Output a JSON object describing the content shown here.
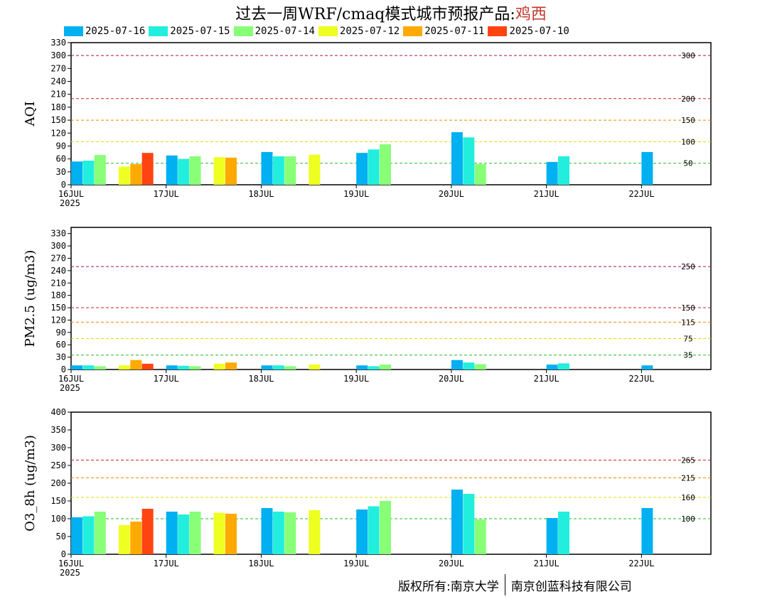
{
  "header": {
    "title_prefix": "过去一周WRF/cmaq模式城市预报产品:",
    "location": "鸡西"
  },
  "footer": {
    "left": "版权所有:南京大学",
    "right": "南京创蓝科技有限公司"
  },
  "colors": {
    "threshold_palette": {
      "good": "#22bb22",
      "moderate": "#dddd00",
      "sensitive": "#ee8800",
      "unhealthy": "#cc2222",
      "very_unhealthy": "#aa1155"
    }
  },
  "chart_data": [
    {
      "type": "bar",
      "ylabel": "AQI",
      "ylim": [
        0,
        330
      ],
      "yticks": [
        0,
        30,
        60,
        90,
        120,
        150,
        180,
        210,
        240,
        270,
        300,
        330
      ],
      "xlim": [
        16.0,
        22.73
      ],
      "xticks": [
        {
          "day": 16,
          "label": "16JUL",
          "sublabel": "2025"
        },
        {
          "day": 17,
          "label": "17JUL"
        },
        {
          "day": 18,
          "label": "18JUL"
        },
        {
          "day": 19,
          "label": "19JUL"
        },
        {
          "day": 20,
          "label": "20JUL"
        },
        {
          "day": 21,
          "label": "21JUL"
        },
        {
          "day": 22,
          "label": "22JUL"
        }
      ],
      "thresholds": [
        {
          "value": 50,
          "label": "50",
          "level": "good"
        },
        {
          "value": 100,
          "label": "100",
          "level": "moderate"
        },
        {
          "value": 150,
          "label": "150",
          "level": "sensitive"
        },
        {
          "value": 200,
          "label": "200",
          "level": "unhealthy"
        },
        {
          "value": 300,
          "label": "300",
          "level": "very_unhealthy"
        }
      ],
      "series": [
        {
          "name": "2025-07-16",
          "color": "#00b0f0",
          "points": [
            [
              16.0,
              54
            ],
            [
              17.0,
              68
            ],
            [
              18.0,
              76
            ],
            [
              19.0,
              74
            ],
            [
              20.0,
              122
            ],
            [
              21.0,
              53
            ],
            [
              22.0,
              76
            ]
          ]
        },
        {
          "name": "2025-07-15",
          "color": "#22eedd",
          "points": [
            [
              16.0,
              56
            ],
            [
              17.0,
              60
            ],
            [
              18.0,
              66
            ],
            [
              19.0,
              82
            ],
            [
              20.0,
              110
            ],
            [
              21.0,
              66
            ]
          ]
        },
        {
          "name": "2025-07-14",
          "color": "#88ff77",
          "points": [
            [
              16.0,
              69
            ],
            [
              17.0,
              66
            ],
            [
              18.0,
              66
            ],
            [
              19.0,
              94
            ],
            [
              20.0,
              48
            ]
          ]
        },
        {
          "name": "2025-07-12",
          "color": "#eeff22",
          "points": [
            [
              16.5,
              42
            ],
            [
              17.5,
              64
            ],
            [
              18.5,
              70
            ]
          ]
        },
        {
          "name": "2025-07-11",
          "color": "#ffaa00",
          "points": [
            [
              16.5,
              48
            ],
            [
              17.5,
              63
            ]
          ]
        },
        {
          "name": "2025-07-10",
          "color": "#ff4411",
          "points": [
            [
              16.5,
              74
            ]
          ]
        }
      ]
    },
    {
      "type": "bar",
      "ylabel": "PM2.5 (ug/m3)",
      "ylim": [
        0,
        345
      ],
      "yticks": [
        0,
        30,
        60,
        90,
        120,
        150,
        180,
        210,
        240,
        270,
        300,
        330
      ],
      "xlim": [
        16.0,
        22.73
      ],
      "xticks": [
        {
          "day": 16,
          "label": "16JUL",
          "sublabel": "2025"
        },
        {
          "day": 17,
          "label": "17JUL"
        },
        {
          "day": 18,
          "label": "18JUL"
        },
        {
          "day": 19,
          "label": "19JUL"
        },
        {
          "day": 20,
          "label": "20JUL"
        },
        {
          "day": 21,
          "label": "21JUL"
        },
        {
          "day": 22,
          "label": "22JUL"
        }
      ],
      "thresholds": [
        {
          "value": 35,
          "label": "35",
          "level": "good"
        },
        {
          "value": 75,
          "label": "75",
          "level": "moderate"
        },
        {
          "value": 115,
          "label": "115",
          "level": "sensitive"
        },
        {
          "value": 150,
          "label": "150",
          "level": "unhealthy"
        },
        {
          "value": 250,
          "label": "250",
          "level": "very_unhealthy"
        }
      ],
      "series": [
        {
          "name": "2025-07-16",
          "color": "#00b0f0",
          "points": [
            [
              16.0,
              10
            ],
            [
              17.0,
              10
            ],
            [
              18.0,
              10
            ],
            [
              19.0,
              10
            ],
            [
              20.0,
              23
            ],
            [
              21.0,
              12
            ],
            [
              22.0,
              10
            ]
          ]
        },
        {
          "name": "2025-07-15",
          "color": "#22eedd",
          "points": [
            [
              16.0,
              10
            ],
            [
              17.0,
              9
            ],
            [
              18.0,
              10
            ],
            [
              19.0,
              8
            ],
            [
              20.0,
              17
            ],
            [
              21.0,
              15
            ]
          ]
        },
        {
          "name": "2025-07-14",
          "color": "#88ff77",
          "points": [
            [
              16.0,
              8
            ],
            [
              17.0,
              8
            ],
            [
              18.0,
              8
            ],
            [
              19.0,
              12
            ],
            [
              20.0,
              13
            ]
          ]
        },
        {
          "name": "2025-07-12",
          "color": "#eeff22",
          "points": [
            [
              16.5,
              10
            ],
            [
              17.5,
              14
            ],
            [
              18.5,
              12
            ]
          ]
        },
        {
          "name": "2025-07-11",
          "color": "#ffaa00",
          "points": [
            [
              16.5,
              23
            ],
            [
              17.5,
              17
            ]
          ]
        },
        {
          "name": "2025-07-10",
          "color": "#ff4411",
          "points": [
            [
              16.5,
              14
            ]
          ]
        }
      ]
    },
    {
      "type": "bar",
      "ylabel": "O3_8h (ug/m3)",
      "ylim": [
        0,
        400
      ],
      "yticks": [
        0,
        50,
        100,
        150,
        200,
        250,
        300,
        350,
        400
      ],
      "xlim": [
        16.0,
        22.73
      ],
      "xticks": [
        {
          "day": 16,
          "label": "16JUL",
          "sublabel": "2025"
        },
        {
          "day": 17,
          "label": "17JUL"
        },
        {
          "day": 18,
          "label": "18JUL"
        },
        {
          "day": 19,
          "label": "19JUL"
        },
        {
          "day": 20,
          "label": "20JUL"
        },
        {
          "day": 21,
          "label": "21JUL"
        },
        {
          "day": 22,
          "label": "22JUL"
        }
      ],
      "thresholds": [
        {
          "value": 100,
          "label": "100",
          "level": "good"
        },
        {
          "value": 160,
          "label": "160",
          "level": "moderate"
        },
        {
          "value": 215,
          "label": "215",
          "level": "sensitive"
        },
        {
          "value": 265,
          "label": "265",
          "level": "unhealthy"
        }
      ],
      "series": [
        {
          "name": "2025-07-16",
          "color": "#00b0f0",
          "points": [
            [
              16.0,
              104
            ],
            [
              17.0,
              120
            ],
            [
              18.0,
              130
            ],
            [
              19.0,
              126
            ],
            [
              20.0,
              182
            ],
            [
              21.0,
              102
            ],
            [
              22.0,
              130
            ]
          ]
        },
        {
          "name": "2025-07-15",
          "color": "#22eedd",
          "points": [
            [
              16.0,
              107
            ],
            [
              17.0,
              112
            ],
            [
              18.0,
              120
            ],
            [
              19.0,
              135
            ],
            [
              20.0,
              170
            ],
            [
              21.0,
              120
            ]
          ]
        },
        {
          "name": "2025-07-14",
          "color": "#88ff77",
          "points": [
            [
              16.0,
              120
            ],
            [
              17.0,
              120
            ],
            [
              18.0,
              118
            ],
            [
              19.0,
              150
            ],
            [
              20.0,
              98
            ]
          ]
        },
        {
          "name": "2025-07-12",
          "color": "#eeff22",
          "points": [
            [
              16.5,
              82
            ],
            [
              17.5,
              117
            ],
            [
              18.5,
              124
            ]
          ]
        },
        {
          "name": "2025-07-11",
          "color": "#ffaa00",
          "points": [
            [
              16.5,
              92
            ],
            [
              17.5,
              114
            ]
          ]
        },
        {
          "name": "2025-07-10",
          "color": "#ff4411",
          "points": [
            [
              16.5,
              128
            ]
          ]
        }
      ]
    }
  ]
}
